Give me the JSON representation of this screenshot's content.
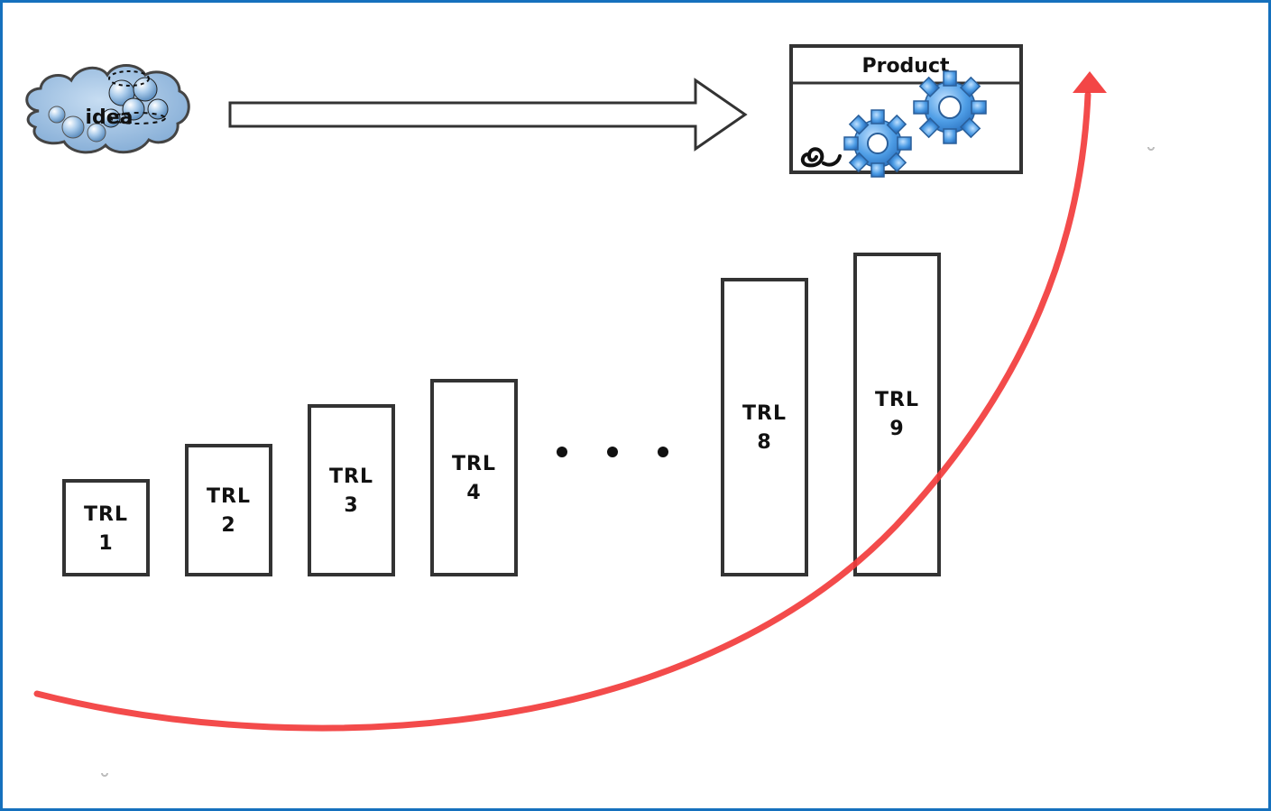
{
  "idea": {
    "label": "idea"
  },
  "product": {
    "title": "Product"
  },
  "trl_levels": [
    {
      "line1": "TRL",
      "line2": "1"
    },
    {
      "line1": "TRL",
      "line2": "2"
    },
    {
      "line1": "TRL",
      "line2": "3"
    },
    {
      "line1": "TRL",
      "line2": "4"
    },
    {
      "line1": "TRL",
      "line2": "8"
    },
    {
      "line1": "TRL",
      "line2": "9"
    }
  ],
  "colors": {
    "frame": "#1570bd",
    "curve_arrow": "#f23c3c",
    "cloud_fill": "#8fb6dc",
    "gear_fill": "#4f9ee6",
    "box_stroke": "#333333"
  },
  "icons": [
    "cloud-icon",
    "gear-icon",
    "ellipsis-icon"
  ]
}
